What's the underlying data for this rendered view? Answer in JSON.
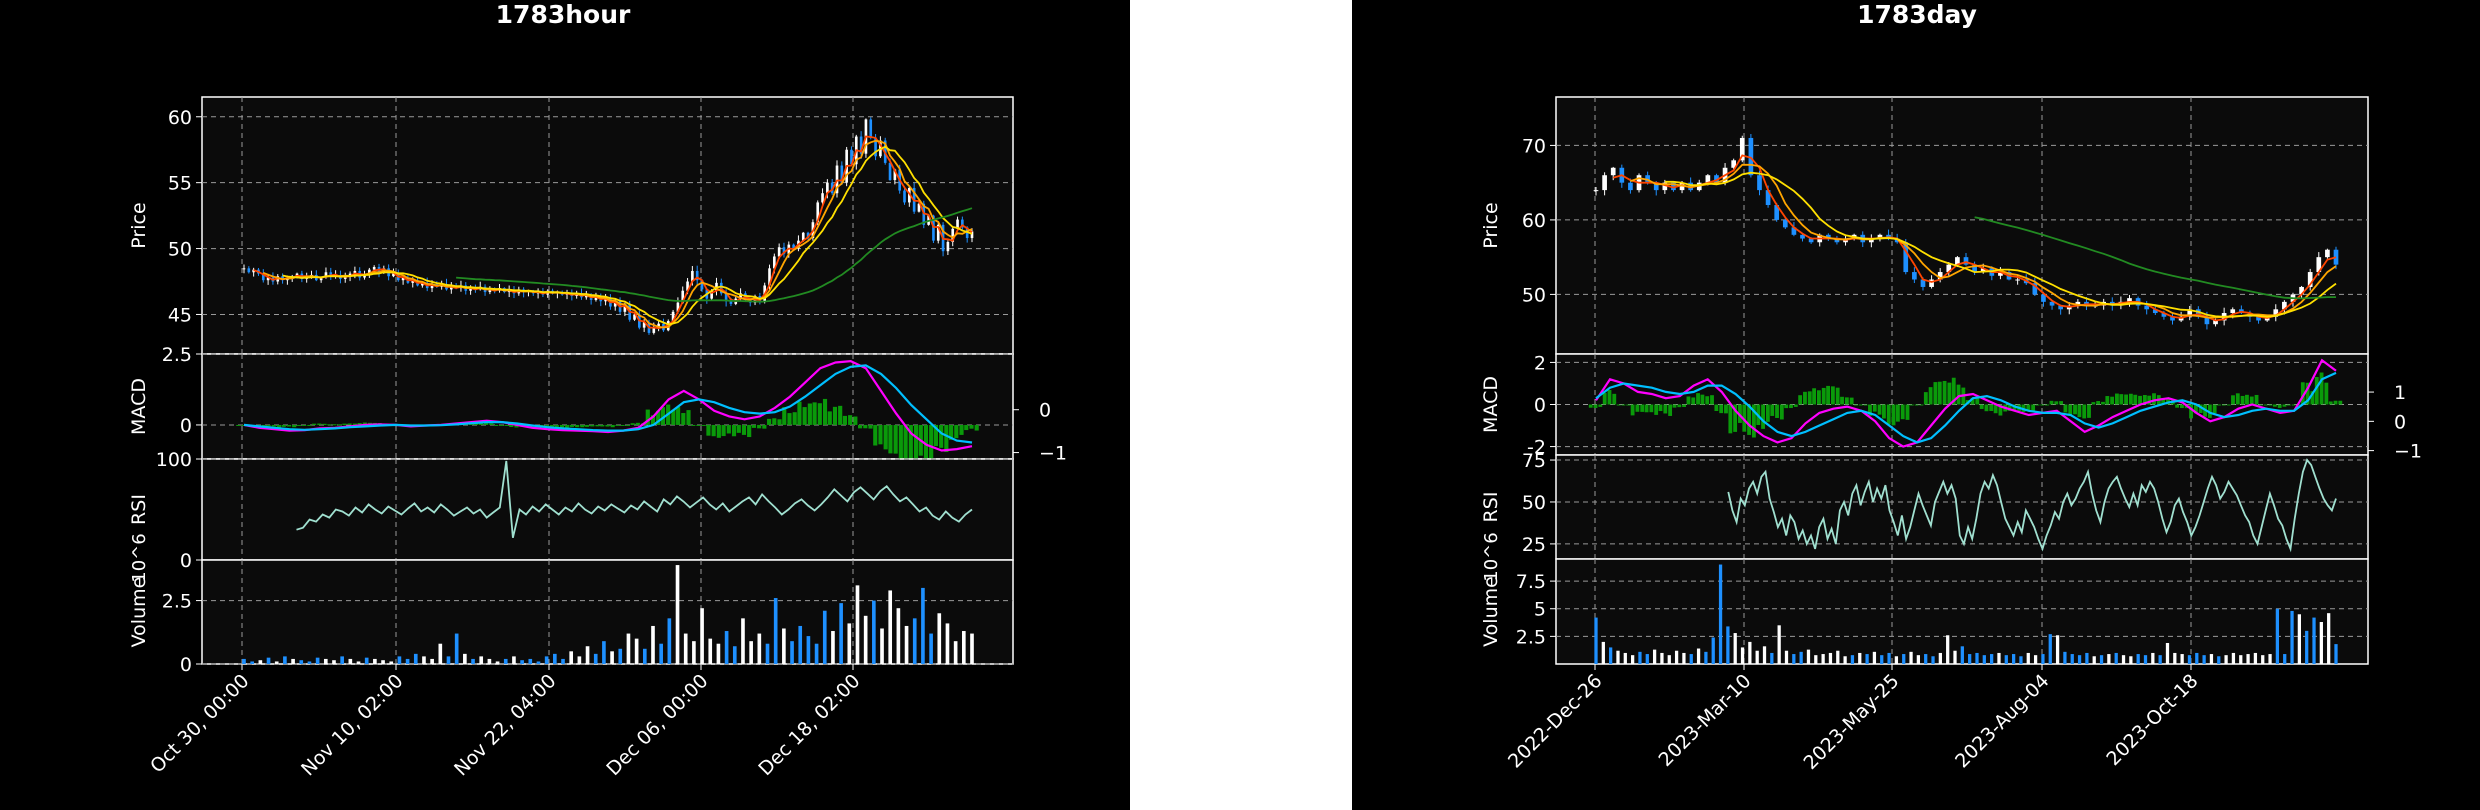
{
  "chart_data": [
    {
      "type": "candlestick",
      "title": "1783hour",
      "panels": {
        "price": {
          "ylabel": "Price",
          "ylim": [
            42,
            61.5
          ],
          "yticks": [
            45,
            50,
            55,
            60
          ],
          "series": [
            {
              "name": "",
              "color": "#ff4500"
            },
            {
              "name": "",
              "color": "#ffa500"
            },
            {
              "name": "",
              "color": "#ffe000"
            },
            {
              "name": "",
              "color": "#228b22"
            }
          ],
          "close": [
            48.5,
            48.2,
            48.4,
            48.1,
            47.6,
            47.8,
            47.5,
            47.9,
            47.6,
            47.8,
            47.9,
            48.1,
            47.7,
            47.9,
            48.0,
            47.6,
            47.8,
            48.2,
            47.9,
            48.0,
            47.7,
            47.9,
            48.1,
            48.3,
            47.8,
            48.0,
            48.4,
            48.6,
            48.2,
            48.5,
            47.9,
            48.1,
            47.6,
            47.8,
            47.4,
            47.6,
            47.2,
            47.4,
            47.0,
            47.3,
            47.1,
            47.3,
            46.9,
            47.1,
            47.0,
            47.2,
            46.8,
            47.0,
            46.9,
            47.1,
            46.7,
            46.9,
            46.8,
            47.0,
            46.7,
            46.8,
            46.6,
            46.9,
            46.7,
            46.8,
            46.6,
            46.7,
            46.5,
            46.8,
            46.6,
            46.7,
            46.5,
            46.6,
            46.4,
            46.6,
            46.3,
            46.5,
            46.1,
            46.4,
            46.0,
            46.2,
            45.6,
            46.0,
            45.2,
            45.8,
            44.6,
            45.0,
            44.0,
            44.4,
            43.6,
            44.0,
            44.3,
            43.8,
            44.5,
            45.2,
            45.9,
            46.8,
            47.5,
            48.3,
            47.6,
            46.9,
            46.2,
            46.8,
            47.4,
            46.6,
            46.0,
            45.8,
            46.2,
            46.6,
            46.1,
            45.9,
            46.4,
            46.0,
            47.2,
            48.5,
            49.4,
            50.1,
            49.6,
            50.3,
            50.0,
            50.6,
            51.2,
            50.8,
            52.0,
            53.5,
            54.2,
            55.0,
            54.2,
            56.3,
            55.0,
            57.5,
            56.4,
            58.5,
            57.2,
            59.8,
            58.4,
            57.0,
            58.2,
            56.5,
            55.2,
            56.0,
            54.4,
            53.5,
            54.6,
            52.8,
            53.4,
            51.8,
            52.5,
            50.6,
            51.8,
            49.8,
            50.5,
            51.5,
            52.2,
            51.6,
            50.8,
            51.3
          ]
        },
        "macd": {
          "ylabel": "MACD",
          "ylim": [
            -1.2,
            2.5
          ],
          "yticks": [
            0.0,
            2.5
          ],
          "yticks_right": [
            0,
            -1
          ],
          "series": [
            {
              "name": "",
              "color": "#ff00ff"
            },
            {
              "name": "",
              "color": "#00bfff"
            },
            {
              "name": "",
              "color": "#008000"
            }
          ],
          "macd": [
            0.0,
            -0.1,
            -0.15,
            -0.2,
            -0.18,
            -0.12,
            -0.1,
            -0.05,
            0.0,
            0.02,
            0.0,
            -0.05,
            -0.02,
            0.0,
            0.05,
            0.1,
            0.15,
            0.1,
            0.0,
            -0.1,
            -0.15,
            -0.18,
            -0.2,
            -0.22,
            -0.25,
            -0.2,
            -0.1,
            0.3,
            0.9,
            1.2,
            0.9,
            0.5,
            0.3,
            0.2,
            0.3,
            0.6,
            1.0,
            1.5,
            2.0,
            2.2,
            2.25,
            2.0,
            1.2,
            0.4,
            -0.3,
            -0.7,
            -0.9,
            -0.85,
            -0.75
          ],
          "signal": [
            0.0,
            -0.05,
            -0.1,
            -0.15,
            -0.17,
            -0.15,
            -0.12,
            -0.08,
            -0.05,
            -0.02,
            0.0,
            -0.02,
            -0.02,
            -0.01,
            0.02,
            0.06,
            0.1,
            0.1,
            0.05,
            -0.02,
            -0.08,
            -0.12,
            -0.15,
            -0.18,
            -0.2,
            -0.2,
            -0.15,
            0.0,
            0.4,
            0.8,
            0.9,
            0.8,
            0.6,
            0.45,
            0.4,
            0.45,
            0.65,
            1.0,
            1.4,
            1.8,
            2.05,
            2.1,
            1.8,
            1.3,
            0.7,
            0.2,
            -0.3,
            -0.55,
            -0.62
          ]
        },
        "rsi": {
          "ylabel": "RSI",
          "ylim": [
            0,
            100
          ],
          "yticks": [
            0,
            100
          ],
          "color": "#a0e0d0",
          "values": [
            null,
            null,
            null,
            null,
            null,
            null,
            null,
            null,
            30,
            32,
            40,
            38,
            45,
            42,
            50,
            48,
            44,
            52,
            47,
            55,
            50,
            46,
            53,
            49,
            45,
            51,
            56,
            48,
            52,
            47,
            55,
            50,
            44,
            48,
            52,
            46,
            50,
            42,
            47,
            52,
            98,
            22,
            50,
            45,
            53,
            48,
            55,
            50,
            45,
            52,
            48,
            56,
            50,
            46,
            53,
            49,
            55,
            51,
            47,
            54,
            50,
            58,
            53,
            48,
            60,
            55,
            63,
            58,
            52,
            57,
            62,
            55,
            50,
            56,
            48,
            53,
            58,
            62,
            55,
            65,
            58,
            52,
            45,
            50,
            56,
            60,
            54,
            49,
            55,
            62,
            70,
            64,
            58,
            67,
            72,
            66,
            60,
            68,
            73,
            65,
            58,
            62,
            55,
            48,
            52,
            44,
            40,
            48,
            42,
            38,
            45,
            50
          ]
        },
        "volume": {
          "ylabel": "Volume",
          "scale": "10^6",
          "ylim": [
            0,
            4.1
          ],
          "yticks": [
            0.0,
            2.5
          ],
          "values": [
            0.2,
            0.1,
            0.15,
            0.25,
            0.1,
            0.3,
            0.2,
            0.15,
            0.1,
            0.25,
            0.2,
            0.15,
            0.3,
            0.2,
            0.1,
            0.25,
            0.2,
            0.15,
            0.1,
            0.3,
            0.2,
            0.4,
            0.3,
            0.2,
            0.8,
            0.3,
            1.2,
            0.4,
            0.2,
            0.3,
            0.2,
            0.1,
            0.2,
            0.3,
            0.15,
            0.2,
            0.1,
            0.3,
            0.4,
            0.2,
            0.5,
            0.3,
            0.7,
            0.4,
            0.9,
            0.5,
            0.6,
            1.2,
            1.0,
            0.6,
            1.5,
            0.8,
            1.8,
            3.9,
            1.2,
            0.9,
            2.2,
            1.0,
            0.8,
            1.3,
            0.7,
            1.8,
            0.9,
            1.2,
            0.8,
            2.6,
            1.4,
            0.9,
            1.5,
            1.1,
            0.8,
            2.1,
            1.3,
            2.4,
            1.6,
            3.1,
            1.9,
            2.5,
            1.4,
            2.9,
            2.2,
            1.5,
            1.8,
            3.0,
            1.2,
            2.0,
            1.6,
            0.9,
            1.3,
            1.2
          ]
        }
      },
      "xticks": [
        "Oct 30, 00:00",
        "Nov 10, 02:00",
        "Nov 22, 04:00",
        "Dec 06, 00:00",
        "Dec 18, 02:00"
      ]
    },
    {
      "type": "candlestick",
      "title": "1783day",
      "panels": {
        "price": {
          "ylabel": "Price",
          "ylim": [
            42,
            76.5
          ],
          "yticks": [
            50,
            60,
            70
          ],
          "series": [
            {
              "name": "",
              "color": "#ff4500"
            },
            {
              "name": "",
              "color": "#ffa500"
            },
            {
              "name": "",
              "color": "#ffe000"
            },
            {
              "name": "",
              "color": "#228b22"
            }
          ],
          "close": [
            64,
            66,
            67,
            65,
            64,
            66,
            65,
            64,
            65,
            64,
            65,
            64,
            65,
            66,
            65,
            67,
            68,
            71,
            66,
            64,
            62,
            60,
            59,
            58,
            57.5,
            57,
            58,
            57.5,
            57,
            57.5,
            58,
            57,
            57.5,
            58,
            57.5,
            57,
            53,
            52,
            51,
            52,
            53,
            54,
            55,
            54,
            53,
            53.5,
            52.5,
            53,
            52,
            52,
            51.5,
            50,
            49,
            48.5,
            48,
            48.5,
            49,
            48.5,
            48.5,
            49,
            48.5,
            49,
            49.5,
            48.5,
            48,
            47.5,
            47,
            46.5,
            47,
            48,
            47,
            46,
            46.5,
            47.5,
            48,
            47.5,
            47,
            46.5,
            47,
            48,
            49,
            50,
            51,
            53,
            55,
            56,
            54
          ]
        },
        "macd": {
          "ylabel": "MACD",
          "ylim": [
            -2.4,
            2.4
          ],
          "yticks": [
            2,
            0,
            -2
          ],
          "yticks_right": [
            1,
            0,
            -1
          ],
          "series": [
            {
              "name": "",
              "color": "#ff00ff"
            },
            {
              "name": "",
              "color": "#00bfff"
            },
            {
              "name": "",
              "color": "#008000"
            }
          ],
          "macd": [
            0.2,
            1.2,
            1.0,
            0.6,
            0.5,
            0.3,
            0.4,
            0.9,
            1.2,
            0.6,
            -0.3,
            -1.0,
            -1.5,
            -1.8,
            -1.6,
            -0.9,
            -0.4,
            -0.2,
            -0.1,
            -0.3,
            -0.8,
            -1.6,
            -2.0,
            -1.8,
            -1.0,
            -0.2,
            0.4,
            0.5,
            0.2,
            -0.1,
            -0.3,
            -0.5,
            -0.4,
            -0.3,
            -0.8,
            -1.3,
            -1.0,
            -0.6,
            -0.3,
            0.0,
            0.2,
            0.3,
            0.1,
            -0.4,
            -0.8,
            -0.6,
            -0.2,
            0.0,
            -0.2,
            -0.4,
            -0.3,
            0.8,
            2.1,
            1.6
          ],
          "signal": [
            0.3,
            0.8,
            1.0,
            0.9,
            0.8,
            0.6,
            0.5,
            0.6,
            0.9,
            0.9,
            0.5,
            -0.1,
            -0.8,
            -1.3,
            -1.5,
            -1.3,
            -1.0,
            -0.7,
            -0.4,
            -0.3,
            -0.5,
            -1.0,
            -1.5,
            -1.8,
            -1.6,
            -1.0,
            -0.3,
            0.3,
            0.4,
            0.2,
            -0.1,
            -0.3,
            -0.4,
            -0.4,
            -0.5,
            -0.9,
            -1.1,
            -0.9,
            -0.6,
            -0.3,
            -0.1,
            0.1,
            0.2,
            0.0,
            -0.4,
            -0.6,
            -0.5,
            -0.3,
            -0.2,
            -0.3,
            -0.3,
            0.2,
            1.2,
            1.5
          ]
        },
        "rsi": {
          "ylabel": "RSI",
          "ylim": [
            16,
            78
          ],
          "yticks": [
            25,
            50,
            75
          ],
          "color": "#a0e0d0",
          "values": [
            null,
            null,
            null,
            null,
            null,
            null,
            null,
            null,
            null,
            null,
            null,
            null,
            null,
            null,
            null,
            null,
            null,
            null,
            null,
            null,
            null,
            null,
            null,
            null,
            null,
            null,
            null,
            null,
            null,
            null,
            null,
            null,
            56,
            45,
            38,
            52,
            48,
            58,
            62,
            55,
            65,
            68,
            52,
            44,
            35,
            40,
            30,
            42,
            38,
            28,
            33,
            25,
            30,
            22,
            35,
            40,
            28,
            34,
            25,
            45,
            50,
            42,
            55,
            60,
            48,
            56,
            62,
            50,
            58,
            52,
            60,
            45,
            38,
            30,
            42,
            28,
            35,
            45,
            55,
            48,
            42,
            36,
            50,
            56,
            62,
            55,
            60,
            52,
            30,
            25,
            35,
            28,
            40,
            55,
            62,
            58,
            66,
            60,
            50,
            40,
            35,
            30,
            38,
            32,
            45,
            40,
            35,
            28,
            22,
            30,
            36,
            44,
            40,
            50,
            55,
            48,
            52,
            58,
            62,
            68,
            55,
            45,
            38,
            50,
            58,
            62,
            65,
            58,
            52,
            47,
            55,
            48,
            60,
            56,
            62,
            58,
            50,
            40,
            32,
            38,
            48,
            52,
            44,
            38,
            30,
            35,
            42,
            50,
            58,
            65,
            60,
            52,
            56,
            62,
            58,
            54,
            48,
            42,
            38,
            30,
            25,
            35,
            45,
            55,
            48,
            40,
            36,
            28,
            22,
            40,
            55,
            68,
            75,
            72,
            65,
            58,
            52,
            48,
            45,
            52
          ]
        },
        "volume": {
          "ylabel": "Volume",
          "scale": "10^6",
          "ylim": [
            0,
            9.5
          ],
          "yticks": [
            2.5,
            5.0,
            7.5
          ],
          "values": [
            4.2,
            2.0,
            1.5,
            1.2,
            1.0,
            0.8,
            1.1,
            0.9,
            1.3,
            1.0,
            0.8,
            1.2,
            1.0,
            0.9,
            1.4,
            1.1,
            2.4,
            9.0,
            3.4,
            2.8,
            1.5,
            2.0,
            1.2,
            1.6,
            1.0,
            3.5,
            1.2,
            0.9,
            1.1,
            1.3,
            0.8,
            0.9,
            1.0,
            1.2,
            0.7,
            0.8,
            1.0,
            0.9,
            1.1,
            0.8,
            1.0,
            0.7,
            0.9,
            1.1,
            0.8,
            0.9,
            0.7,
            1.0,
            2.6,
            1.2,
            1.6,
            0.9,
            1.0,
            0.8,
            0.9,
            1.0,
            0.8,
            0.9,
            0.7,
            1.0,
            0.8,
            0.9,
            2.7,
            2.6,
            1.1,
            0.9,
            0.8,
            1.0,
            0.7,
            0.8,
            0.9,
            1.0,
            0.8,
            0.7,
            0.9,
            0.8,
            1.0,
            0.8,
            1.9,
            1.0,
            0.9,
            0.8,
            1.0,
            0.8,
            0.9,
            0.7,
            0.8,
            1.0,
            0.8,
            0.9,
            1.0,
            0.8,
            0.9,
            5.0,
            0.9,
            4.8,
            4.5,
            3.0,
            4.2,
            3.8,
            4.6,
            1.8
          ]
        }
      },
      "xticks": [
        "2022-Dec-26",
        "2023-Mar-10",
        "2023-May-25",
        "2023-Aug-04",
        "2023-Oct-18"
      ]
    }
  ]
}
